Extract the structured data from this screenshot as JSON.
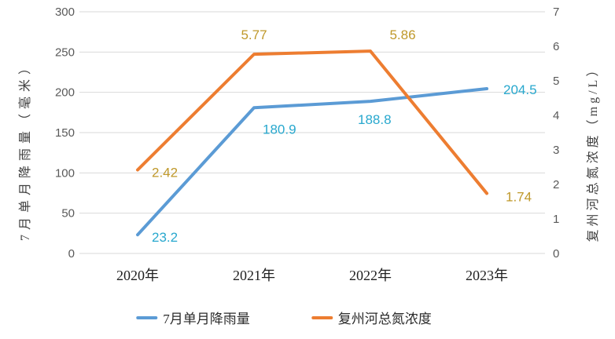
{
  "chart_data": {
    "type": "line",
    "categories": [
      "2020年",
      "2021年",
      "2022年",
      "2023年"
    ],
    "series": [
      {
        "name": "7月单月降雨量",
        "axis": "left",
        "values": [
          23.2,
          180.9,
          188.8,
          204.5
        ],
        "color": "#5B9BD5",
        "label_color": "#28A8CE"
      },
      {
        "name": "复州河总氮浓度",
        "axis": "right",
        "values": [
          2.42,
          5.77,
          5.86,
          1.74
        ],
        "color": "#ED7D31",
        "label_color": "#BF982A"
      }
    ],
    "left_axis": {
      "title": "7月单月降雨量（毫米）",
      "min": 0,
      "max": 300,
      "step": 50,
      "ticks": [
        "0",
        "50",
        "100",
        "150",
        "200",
        "250",
        "300"
      ]
    },
    "right_axis": {
      "title": "复州河总氮浓度（mg/L）",
      "min": 0,
      "max": 7,
      "step": 1,
      "ticks": [
        "0",
        "1",
        "2",
        "3",
        "4",
        "5",
        "6",
        "7"
      ]
    },
    "title": "",
    "grid": true,
    "legend_position": "bottom",
    "colors": {
      "gridline": "#D9D9D9",
      "tick_label": "#595959",
      "category_label": "#1f1f1f",
      "background": "#FFFFFF"
    }
  },
  "legend": {
    "items": [
      {
        "label": "7月单月降雨量",
        "color": "#5B9BD5"
      },
      {
        "label": "复州河总氮浓度",
        "color": "#ED7D31"
      }
    ]
  }
}
